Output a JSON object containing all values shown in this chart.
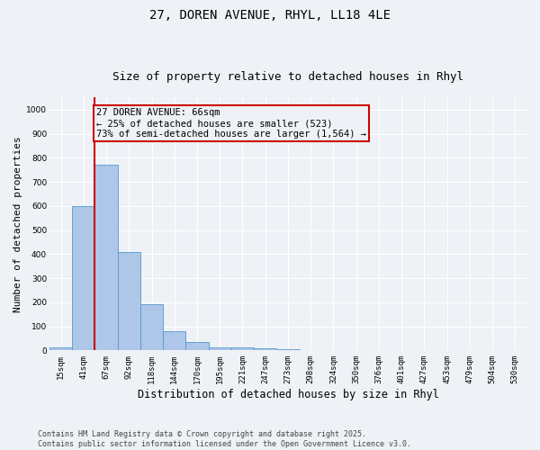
{
  "title_line1": "27, DOREN AVENUE, RHYL, LL18 4LE",
  "title_line2": "Size of property relative to detached houses in Rhyl",
  "xlabel": "Distribution of detached houses by size in Rhyl",
  "ylabel": "Number of detached properties",
  "categories": [
    "15sqm",
    "41sqm",
    "67sqm",
    "92sqm",
    "118sqm",
    "144sqm",
    "170sqm",
    "195sqm",
    "221sqm",
    "247sqm",
    "273sqm",
    "298sqm",
    "324sqm",
    "350sqm",
    "376sqm",
    "401sqm",
    "427sqm",
    "453sqm",
    "479sqm",
    "504sqm",
    "530sqm"
  ],
  "values": [
    12,
    600,
    770,
    410,
    192,
    78,
    35,
    14,
    14,
    10,
    5,
    0,
    0,
    0,
    0,
    0,
    0,
    0,
    0,
    0,
    0
  ],
  "bar_color": "#aec6e8",
  "bar_edge_color": "#5599cc",
  "vline_x_index": 2,
  "vline_color": "#cc0000",
  "annotation_text": "27 DOREN AVENUE: 66sqm\n← 25% of detached houses are smaller (523)\n73% of semi-detached houses are larger (1,564) →",
  "annotation_box_color": "#cc0000",
  "ylim": [
    0,
    1050
  ],
  "yticks": [
    0,
    100,
    200,
    300,
    400,
    500,
    600,
    700,
    800,
    900,
    1000
  ],
  "background_color": "#eef2f7",
  "grid_color": "#ffffff",
  "footer_line1": "Contains HM Land Registry data © Crown copyright and database right 2025.",
  "footer_line2": "Contains public sector information licensed under the Open Government Licence v3.0.",
  "title_fontsize": 10,
  "subtitle_fontsize": 9,
  "axis_label_fontsize": 8,
  "tick_fontsize": 6.5,
  "annotation_fontsize": 7.5,
  "footer_fontsize": 6
}
